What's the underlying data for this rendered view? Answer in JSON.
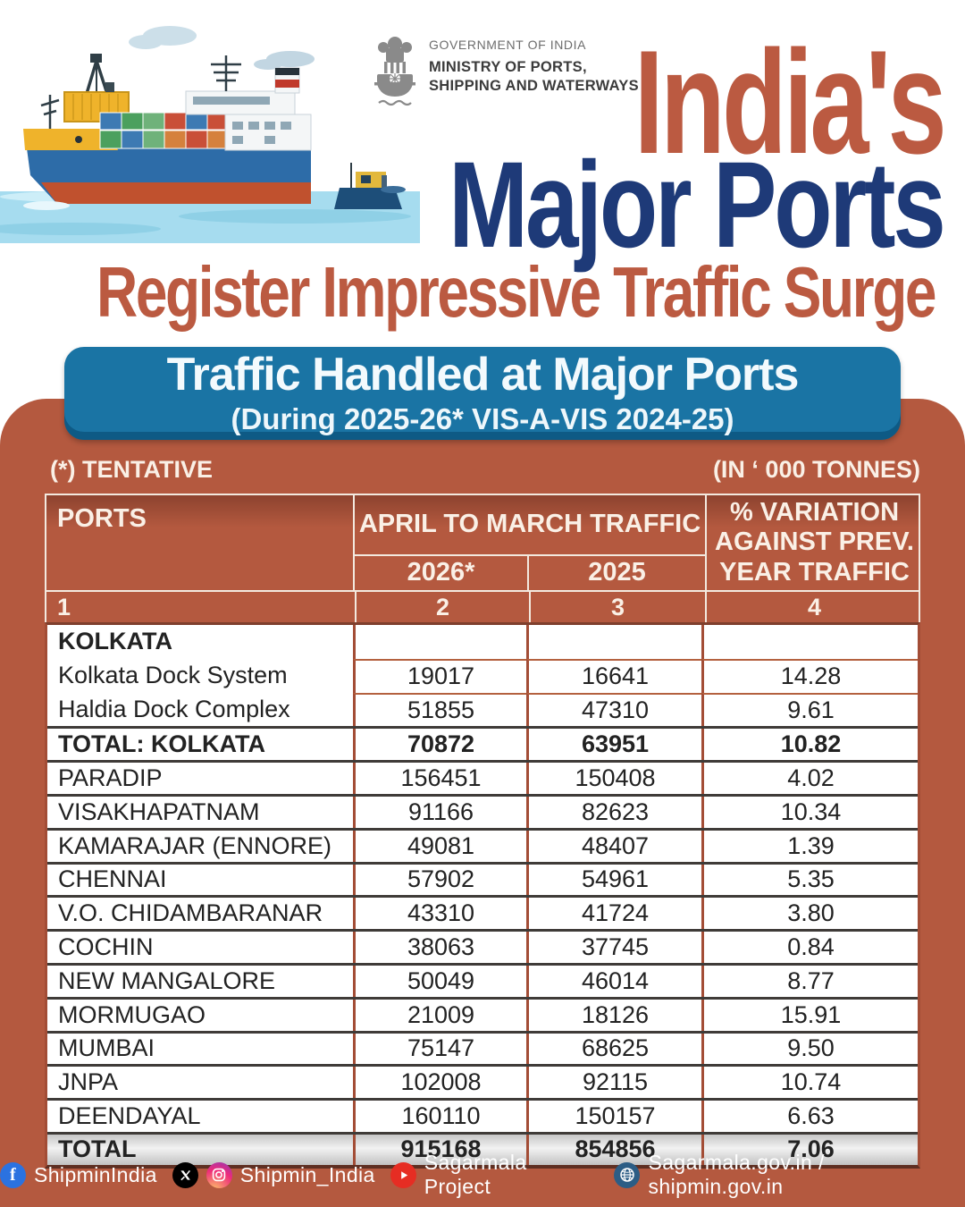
{
  "masthead": {
    "government": "GOVERNMENT OF INDIA",
    "ministry": "MINISTRY OF PORTS, SHIPPING AND WATERWAYS"
  },
  "title": {
    "line1": "India's",
    "line2": "Major Ports",
    "tagline": "Register Impressive Traffic Surge"
  },
  "banner": {
    "heading": "Traffic Handled at Major Ports",
    "subheading": "(During 2025-26* VIS-A-VIS 2024-25)"
  },
  "notes": {
    "left": "(*) TENTATIVE",
    "right": "(IN ‘ 000 TONNES)"
  },
  "table": {
    "headers": {
      "ports": "PORTS",
      "traffic_group": "APRIL TO MARCH TRAFFIC",
      "year_2026": "2026*",
      "year_2025": "2025",
      "variation": "% VARIATION AGAINST PREV. YEAR TRAFFIC"
    },
    "column_numbers": [
      "1",
      "2",
      "3",
      "4"
    ],
    "rows": [
      {
        "port": "KOLKATA",
        "v2026": "",
        "v2025": "",
        "variation": "",
        "style": "group"
      },
      {
        "port": "Kolkata Dock System",
        "v2026": "19017",
        "v2025": "16641",
        "variation": "14.28",
        "style": "sub"
      },
      {
        "port": "Haldia Dock Complex",
        "v2026": "51855",
        "v2025": "47310",
        "variation": "9.61",
        "style": "sub"
      },
      {
        "port": "TOTAL: KOLKATA",
        "v2026": "70872",
        "v2025": "63951",
        "variation": "10.82",
        "style": "subtotal"
      },
      {
        "port": "PARADIP",
        "v2026": "156451",
        "v2025": "150408",
        "variation": "4.02",
        "style": "normal"
      },
      {
        "port": "VISAKHAPATNAM",
        "v2026": "91166",
        "v2025": "82623",
        "variation": "10.34",
        "style": "normal"
      },
      {
        "port": "KAMARAJAR (ENNORE)",
        "v2026": "49081",
        "v2025": "48407",
        "variation": "1.39",
        "style": "normal"
      },
      {
        "port": "CHENNAI",
        "v2026": "57902",
        "v2025": "54961",
        "variation": "5.35",
        "style": "normal"
      },
      {
        "port": "V.O. CHIDAMBARANAR",
        "v2026": "43310",
        "v2025": "41724",
        "variation": "3.80",
        "style": "normal"
      },
      {
        "port": "COCHIN",
        "v2026": "38063",
        "v2025": "37745",
        "variation": "0.84",
        "style": "normal"
      },
      {
        "port": "NEW MANGALORE",
        "v2026": "50049",
        "v2025": "46014",
        "variation": "8.77",
        "style": "normal"
      },
      {
        "port": "MORMUGAO",
        "v2026": "21009",
        "v2025": "18126",
        "variation": "15.91",
        "style": "normal"
      },
      {
        "port": "MUMBAI",
        "v2026": "75147",
        "v2025": "68625",
        "variation": "9.50",
        "style": "normal"
      },
      {
        "port": "JNPA",
        "v2026": "102008",
        "v2025": "92115",
        "variation": "10.74",
        "style": "normal"
      },
      {
        "port": "DEENDAYAL",
        "v2026": "160110",
        "v2025": "150157",
        "variation": "6.63",
        "style": "normal"
      },
      {
        "port": "TOTAL",
        "v2026": "915168",
        "v2025": "854856",
        "variation": "7.06",
        "style": "total"
      }
    ]
  },
  "chart_data": {
    "type": "table",
    "title": "Traffic Handled at Major Ports (During 2025-26* VIS-A-VIS 2024-25)",
    "unit": "'000 tonnes",
    "note": "(*) TENTATIVE",
    "columns": [
      "PORTS",
      "APRIL TO MARCH TRAFFIC 2026*",
      "APRIL TO MARCH TRAFFIC 2025",
      "% VARIATION AGAINST PREV. YEAR TRAFFIC"
    ],
    "rows": [
      [
        "KOLKATA",
        null,
        null,
        null
      ],
      [
        "Kolkata Dock System",
        19017,
        16641,
        14.28
      ],
      [
        "Haldia Dock Complex",
        51855,
        47310,
        9.61
      ],
      [
        "TOTAL: KOLKATA",
        70872,
        63951,
        10.82
      ],
      [
        "PARADIP",
        156451,
        150408,
        4.02
      ],
      [
        "VISAKHAPATNAM",
        91166,
        82623,
        10.34
      ],
      [
        "KAMARAJAR (ENNORE)",
        49081,
        48407,
        1.39
      ],
      [
        "CHENNAI",
        57902,
        54961,
        5.35
      ],
      [
        "V.O. CHIDAMBARANAR",
        43310,
        41724,
        3.8
      ],
      [
        "COCHIN",
        38063,
        37745,
        0.84
      ],
      [
        "NEW MANGALORE",
        50049,
        46014,
        8.77
      ],
      [
        "MORMUGAO",
        21009,
        18126,
        15.91
      ],
      [
        "MUMBAI",
        75147,
        68625,
        9.5
      ],
      [
        "JNPA",
        102008,
        92115,
        10.74
      ],
      [
        "DEENDAYAL",
        160110,
        150157,
        6.63
      ],
      [
        "TOTAL",
        915168,
        854856,
        7.06
      ]
    ]
  },
  "footer": {
    "facebook": "ShipminIndia",
    "twitter_instagram": "Shipmin_India",
    "youtube": "Sagarmala Project",
    "website": "Sagarmala.gov.in / shipmin.gov.in"
  },
  "colors": {
    "terracotta": "#b4593f",
    "title_red": "#bb5a41",
    "title_navy": "#1e3a78",
    "banner_blue": "#1a74a4",
    "table_border_red": "#a34d36",
    "row_divider_dark": "#3f3b38",
    "header_text_cream": "#faf0e6",
    "total_row_silver": "#d9d9d9"
  }
}
